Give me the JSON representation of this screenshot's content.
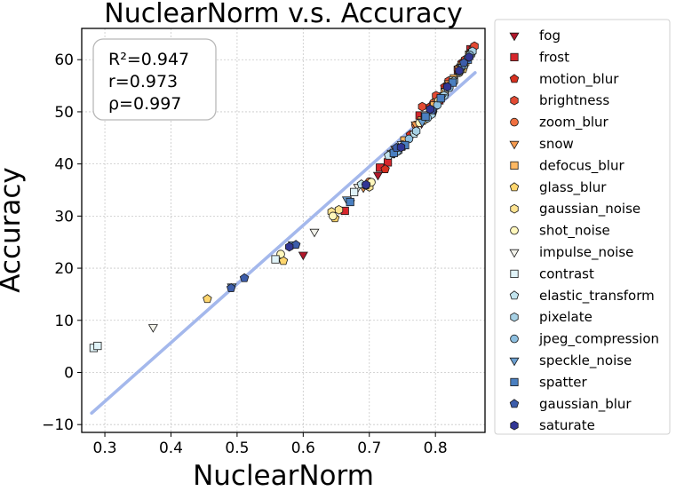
{
  "chart_data": {
    "type": "scatter",
    "title": "NuclearNorm  v.s.  Accuracy",
    "xlabel": "NuclearNorm",
    "ylabel": "Accuracy",
    "xlim": [
      0.265,
      0.875
    ],
    "ylim": [
      -11.5,
      66
    ],
    "xticks": [
      0.3,
      0.4,
      0.5,
      0.6,
      0.7,
      0.8
    ],
    "xtick_labels": [
      "0.3",
      "0.4",
      "0.5",
      "0.6",
      "0.7",
      "0.8"
    ],
    "yticks": [
      -10,
      0,
      10,
      20,
      30,
      40,
      50,
      60
    ],
    "ytick_labels": [
      "−10",
      "0",
      "10",
      "20",
      "30",
      "40",
      "50",
      "60"
    ],
    "grid": true,
    "legend_position": "outside-right",
    "stats": {
      "r2": "R²=0.947",
      "r": "r=0.973",
      "rho": "ρ=0.997"
    },
    "fit_line": {
      "x": [
        0.28,
        0.86
      ],
      "y": [
        -7.8,
        57.5
      ],
      "color": "#a4b8ec"
    },
    "series": [
      {
        "name": "fog",
        "marker": "triangle-down",
        "color": "#b2182b",
        "points": [
          [
            0.6,
            22.6
          ],
          [
            0.713,
            37.9
          ],
          [
            0.719,
            39.5
          ],
          [
            0.779,
            47.8
          ],
          [
            0.813,
            53.2
          ],
          [
            0.838,
            58.5
          ],
          [
            0.852,
            61.2
          ]
        ]
      },
      {
        "name": "frost",
        "marker": "square",
        "color": "#d6262c",
        "points": [
          [
            0.663,
            31.0
          ],
          [
            0.716,
            39.3
          ],
          [
            0.728,
            40.3
          ],
          [
            0.776,
            49.3
          ],
          [
            0.806,
            52.2
          ],
          [
            0.834,
            58.0
          ],
          [
            0.853,
            62.0
          ]
        ]
      },
      {
        "name": "motion_blur",
        "marker": "pentagon",
        "color": "#d7301f",
        "points": [
          [
            0.671,
            32.8
          ],
          [
            0.724,
            39.0
          ],
          [
            0.762,
            45.6
          ],
          [
            0.792,
            51.0
          ],
          [
            0.814,
            54.8
          ],
          [
            0.84,
            59.4
          ],
          [
            0.857,
            62.2
          ]
        ]
      },
      {
        "name": "brightness",
        "marker": "hexagon",
        "color": "#e34a33",
        "points": [
          [
            0.78,
            51.0
          ],
          [
            0.801,
            53.1
          ],
          [
            0.82,
            55.9
          ],
          [
            0.834,
            58.3
          ],
          [
            0.845,
            60.0
          ],
          [
            0.853,
            61.4
          ],
          [
            0.859,
            62.6
          ]
        ]
      },
      {
        "name": "zoom_blur",
        "marker": "circle",
        "color": "#f07040",
        "points": [
          [
            0.7,
            36.6
          ],
          [
            0.742,
            42.5
          ],
          [
            0.77,
            47.5
          ],
          [
            0.797,
            51.7
          ],
          [
            0.818,
            55.0
          ],
          [
            0.838,
            58.6
          ],
          [
            0.854,
            61.4
          ]
        ]
      },
      {
        "name": "snow",
        "marker": "triangle-down",
        "color": "#f59a4e",
        "points": [
          [
            0.691,
            35.5
          ],
          [
            0.739,
            42.9
          ],
          [
            0.77,
            47.6
          ],
          [
            0.802,
            52.0
          ],
          [
            0.82,
            55.5
          ],
          [
            0.835,
            58.3
          ],
          [
            0.852,
            61.2
          ]
        ]
      },
      {
        "name": "defocus_blur",
        "marker": "square",
        "color": "#fdb863",
        "points": [
          [
            0.753,
            44.5
          ],
          [
            0.779,
            48.3
          ],
          [
            0.798,
            51.2
          ],
          [
            0.814,
            53.8
          ],
          [
            0.828,
            56.4
          ],
          [
            0.84,
            58.8
          ],
          [
            0.851,
            60.8
          ]
        ]
      },
      {
        "name": "glass_blur",
        "marker": "pentagon",
        "color": "#fed66e",
        "points": [
          [
            0.455,
            14.1
          ],
          [
            0.57,
            21.4
          ],
          [
            0.648,
            29.6
          ],
          [
            0.699,
            35.8
          ],
          [
            0.75,
            43.3
          ],
          [
            0.796,
            49.9
          ],
          [
            0.842,
            58.2
          ]
        ]
      },
      {
        "name": "gaussian_noise",
        "marker": "hexagon",
        "color": "#fee391",
        "points": [
          [
            0.643,
            30.8
          ],
          [
            0.654,
            31.2
          ],
          [
            0.7,
            35.6
          ],
          [
            0.748,
            43.4
          ],
          [
            0.784,
            48.5
          ],
          [
            0.821,
            54.9
          ],
          [
            0.845,
            59.3
          ]
        ]
      },
      {
        "name": "shot_noise",
        "marker": "circle",
        "color": "#fff7bc",
        "points": [
          [
            0.566,
            22.7
          ],
          [
            0.645,
            30.0
          ],
          [
            0.703,
            36.5
          ],
          [
            0.75,
            43.7
          ],
          [
            0.776,
            47.9
          ],
          [
            0.805,
            52.2
          ],
          [
            0.836,
            57.5
          ]
        ]
      },
      {
        "name": "impulse_noise",
        "marker": "triangle-down",
        "color": "#f2f2ea",
        "points": [
          [
            0.373,
            8.7
          ],
          [
            0.617,
            27.0
          ],
          [
            0.683,
            35.6
          ],
          [
            0.749,
            43.8
          ],
          [
            0.79,
            49.4
          ],
          [
            0.816,
            54.0
          ],
          [
            0.839,
            58.7
          ]
        ]
      },
      {
        "name": "contrast",
        "marker": "square",
        "color": "#e0f3f8",
        "points": [
          [
            0.283,
            4.7
          ],
          [
            0.289,
            5.1
          ],
          [
            0.558,
            21.7
          ],
          [
            0.677,
            34.6
          ],
          [
            0.733,
            41.9
          ],
          [
            0.784,
            49.3
          ],
          [
            0.827,
            56.0
          ]
        ]
      },
      {
        "name": "elastic_transform",
        "marker": "pentagon",
        "color": "#c2e4ee",
        "points": [
          [
            0.688,
            36.1
          ],
          [
            0.729,
            41.6
          ],
          [
            0.768,
            45.8
          ],
          [
            0.796,
            50.2
          ],
          [
            0.818,
            54.6
          ],
          [
            0.839,
            58.2
          ],
          [
            0.855,
            61.2
          ]
        ]
      },
      {
        "name": "pixelate",
        "marker": "hexagon",
        "color": "#a6d0e4",
        "points": [
          [
            0.744,
            42.5
          ],
          [
            0.771,
            46.3
          ],
          [
            0.794,
            49.5
          ],
          [
            0.813,
            53.1
          ],
          [
            0.828,
            55.9
          ],
          [
            0.843,
            58.9
          ],
          [
            0.856,
            61.6
          ]
        ]
      },
      {
        "name": "jpeg_compression",
        "marker": "circle",
        "color": "#8dbfe0",
        "points": [
          [
            0.742,
            42.4
          ],
          [
            0.76,
            44.8
          ],
          [
            0.788,
            48.8
          ],
          [
            0.803,
            51.3
          ],
          [
            0.821,
            54.6
          ],
          [
            0.836,
            57.7
          ],
          [
            0.852,
            60.9
          ]
        ]
      },
      {
        "name": "speckle_noise",
        "marker": "triangle-down",
        "color": "#6a9fd1",
        "points": [
          [
            0.492,
            16.5
          ],
          [
            0.584,
            24.6
          ],
          [
            0.666,
            33.2
          ],
          [
            0.737,
            42.1
          ],
          [
            0.78,
            48.1
          ],
          [
            0.81,
            52.8
          ],
          [
            0.841,
            58.6
          ]
        ]
      },
      {
        "name": "spatter",
        "marker": "square",
        "color": "#4a7fc0",
        "points": [
          [
            0.671,
            32.7
          ],
          [
            0.737,
            42.1
          ],
          [
            0.754,
            43.6
          ],
          [
            0.785,
            49.1
          ],
          [
            0.808,
            52.6
          ],
          [
            0.826,
            55.6
          ],
          [
            0.849,
            60.0
          ]
        ]
      },
      {
        "name": "gaussian_blur",
        "marker": "pentagon",
        "color": "#3c5daa",
        "points": [
          [
            0.491,
            16.2
          ],
          [
            0.511,
            18.1
          ],
          [
            0.589,
            24.5
          ],
          [
            0.695,
            35.9
          ],
          [
            0.741,
            43.1
          ],
          [
            0.795,
            50.3
          ],
          [
            0.843,
            59.4
          ]
        ]
      },
      {
        "name": "saturate",
        "marker": "hexagon",
        "color": "#313695",
        "points": [
          [
            0.579,
            24.1
          ],
          [
            0.695,
            36.0
          ],
          [
            0.748,
            43.2
          ],
          [
            0.792,
            50.5
          ],
          [
            0.818,
            54.8
          ],
          [
            0.836,
            57.9
          ],
          [
            0.851,
            60.5
          ]
        ]
      }
    ]
  }
}
